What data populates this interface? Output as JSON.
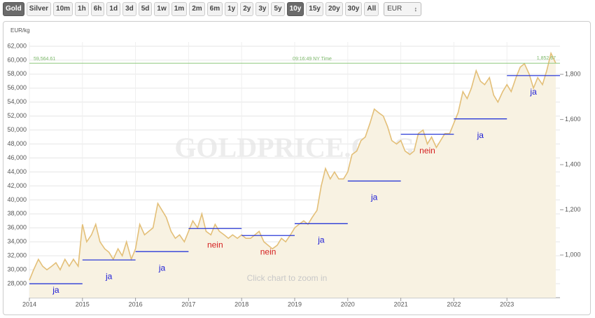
{
  "toolbar": {
    "buttons": [
      {
        "label": "Gold",
        "active": true
      },
      {
        "label": "Silver",
        "active": false
      },
      {
        "label": "10m",
        "active": false
      },
      {
        "label": "1h",
        "active": false
      },
      {
        "label": "6h",
        "active": false
      },
      {
        "label": "1d",
        "active": false
      },
      {
        "label": "3d",
        "active": false
      },
      {
        "label": "5d",
        "active": false
      },
      {
        "label": "1w",
        "active": false
      },
      {
        "label": "1m",
        "active": false
      },
      {
        "label": "2m",
        "active": false
      },
      {
        "label": "6m",
        "active": false
      },
      {
        "label": "1y",
        "active": false
      },
      {
        "label": "2y",
        "active": false
      },
      {
        "label": "3y",
        "active": false
      },
      {
        "label": "5y",
        "active": false
      },
      {
        "label": "10y",
        "active": true
      },
      {
        "label": "15y",
        "active": false
      },
      {
        "label": "20y",
        "active": false
      },
      {
        "label": "30y",
        "active": false
      },
      {
        "label": "All",
        "active": false
      }
    ],
    "currency": "EUR"
  },
  "chart_data": {
    "type": "area",
    "ylabel": "EUR/kg",
    "watermark": "GOLDPRICE.ORG",
    "hint": "Click chart to zoom in",
    "color": "#e3bf78",
    "fill": "#f8f2e2",
    "xlim": [
      2014,
      2024
    ],
    "xticks": [
      2014,
      2015,
      2016,
      2017,
      2018,
      2019,
      2020,
      2021,
      2022,
      2023
    ],
    "ylim": [
      26000,
      62600
    ],
    "yticks": [
      {
        "value": 28000,
        "label": "28,000"
      },
      {
        "value": 30000,
        "label": "30,000"
      },
      {
        "value": 32000,
        "label": "32,000"
      },
      {
        "value": 34000,
        "label": "34,000"
      },
      {
        "value": 36000,
        "label": "36,000"
      },
      {
        "value": 38000,
        "label": "38,000"
      },
      {
        "value": 40000,
        "label": "40,000"
      },
      {
        "value": 42000,
        "label": "42,000"
      },
      {
        "value": 44000,
        "label": "44,000"
      },
      {
        "value": 46000,
        "label": "46,000"
      },
      {
        "value": 48000,
        "label": "48,000"
      },
      {
        "value": 50000,
        "label": "50,000"
      },
      {
        "value": 52000,
        "label": "52,000"
      },
      {
        "value": 54000,
        "label": "54,000"
      },
      {
        "value": 56000,
        "label": "56,000"
      },
      {
        "value": 58000,
        "label": "58,000"
      },
      {
        "value": 60000,
        "label": "60,000"
      },
      {
        "value": 62000,
        "label": "62,000"
      }
    ],
    "y2lim": [
      811,
      1943
    ],
    "y2ticks": [
      {
        "value": 1000,
        "label": "1,000"
      },
      {
        "value": 1200,
        "label": "1,200"
      },
      {
        "value": 1400,
        "label": "1,400"
      },
      {
        "value": 1600,
        "label": "1,600"
      },
      {
        "value": 1800,
        "label": "1,800"
      }
    ],
    "grid": true,
    "x": [
      2014,
      2014.08,
      2014.17,
      2014.25,
      2014.33,
      2014.42,
      2014.5,
      2014.58,
      2014.67,
      2014.75,
      2014.83,
      2014.92,
      2015,
      2015.08,
      2015.17,
      2015.25,
      2015.33,
      2015.42,
      2015.5,
      2015.58,
      2015.67,
      2015.75,
      2015.83,
      2015.92,
      2016,
      2016.08,
      2016.17,
      2016.25,
      2016.33,
      2016.42,
      2016.5,
      2016.58,
      2016.67,
      2016.75,
      2016.83,
      2016.92,
      2017,
      2017.08,
      2017.17,
      2017.25,
      2017.33,
      2017.42,
      2017.5,
      2017.58,
      2017.67,
      2017.75,
      2017.83,
      2017.92,
      2018,
      2018.08,
      2018.17,
      2018.25,
      2018.33,
      2018.42,
      2018.5,
      2018.58,
      2018.67,
      2018.75,
      2018.83,
      2018.92,
      2019,
      2019.08,
      2019.17,
      2019.25,
      2019.33,
      2019.42,
      2019.5,
      2019.58,
      2019.67,
      2019.75,
      2019.83,
      2019.92,
      2020,
      2020.08,
      2020.17,
      2020.25,
      2020.33,
      2020.42,
      2020.5,
      2020.58,
      2020.67,
      2020.75,
      2020.83,
      2020.92,
      2021,
      2021.08,
      2021.17,
      2021.25,
      2021.33,
      2021.42,
      2021.5,
      2021.58,
      2021.67,
      2021.75,
      2021.83,
      2021.92,
      2022,
      2022.08,
      2022.17,
      2022.25,
      2022.33,
      2022.42,
      2022.5,
      2022.58,
      2022.67,
      2022.75,
      2022.83,
      2022.92,
      2023,
      2023.08,
      2023.17,
      2023.25,
      2023.33,
      2023.42,
      2023.5,
      2023.58,
      2023.67,
      2023.75,
      2023.83,
      2023.92
    ],
    "values": [
      28500,
      30000,
      31500,
      30500,
      30000,
      30500,
      31000,
      30000,
      31500,
      30500,
      31500,
      30500,
      36500,
      34000,
      35000,
      36500,
      34000,
      33000,
      32500,
      31500,
      33000,
      32000,
      34000,
      31500,
      33000,
      36500,
      35000,
      35500,
      36000,
      39500,
      38500,
      37500,
      35500,
      34500,
      35000,
      34000,
      35500,
      37000,
      36000,
      38000,
      35500,
      35000,
      36500,
      35500,
      35000,
      34500,
      35000,
      34500,
      35000,
      34500,
      34500,
      35000,
      35500,
      34000,
      33500,
      33000,
      33500,
      34500,
      34000,
      35000,
      36000,
      36500,
      37000,
      36500,
      37500,
      38500,
      42000,
      44500,
      43000,
      44000,
      43000,
      43000,
      44000,
      46500,
      47000,
      48500,
      49000,
      51000,
      53000,
      52500,
      52000,
      50500,
      48500,
      48000,
      48500,
      47000,
      46500,
      47000,
      49500,
      50000,
      48000,
      49000,
      47500,
      48500,
      49500,
      49500,
      51000,
      52500,
      55500,
      54500,
      56000,
      58500,
      57000,
      56500,
      57500,
      55000,
      54000,
      55500,
      56500,
      55500,
      57500,
      59000,
      59500,
      58000,
      56000,
      57500,
      56500,
      58500,
      61000,
      59564.61
    ],
    "reference": {
      "value": 59564.61,
      "label": "59,564.61",
      "time": "09:16:49 NY Time",
      "y2_value": 1852.67,
      "y2_label": "1,852.67",
      "color": "#8fc97f"
    },
    "averages": [
      {
        "x": [
          2014,
          2015
        ],
        "value": 28000,
        "label": "ja",
        "color": "#1a1ad6"
      },
      {
        "x": [
          2015,
          2016
        ],
        "value": 31400,
        "label": "ja",
        "color": "#1a1ad6"
      },
      {
        "x": [
          2016,
          2017
        ],
        "value": 32600,
        "label": "ja",
        "color": "#1a1ad6"
      },
      {
        "x": [
          2017,
          2018
        ],
        "value": 35900,
        "label": "nein",
        "color": "#d42020"
      },
      {
        "x": [
          2018,
          2019
        ],
        "value": 34900,
        "label": "nein",
        "color": "#d42020"
      },
      {
        "x": [
          2019,
          2020
        ],
        "value": 36600,
        "label": "ja",
        "color": "#1a1ad6"
      },
      {
        "x": [
          2020,
          2021
        ],
        "value": 42700,
        "label": "ja",
        "color": "#1a1ad6"
      },
      {
        "x": [
          2021,
          2022
        ],
        "value": 49400,
        "label": "nein",
        "color": "#d42020"
      },
      {
        "x": [
          2022,
          2023
        ],
        "value": 51600,
        "label": "ja",
        "color": "#1a1ad6"
      },
      {
        "x": [
          2023,
          2024
        ],
        "value": 57800,
        "label": "ja",
        "color": "#1a1ad6"
      }
    ]
  }
}
